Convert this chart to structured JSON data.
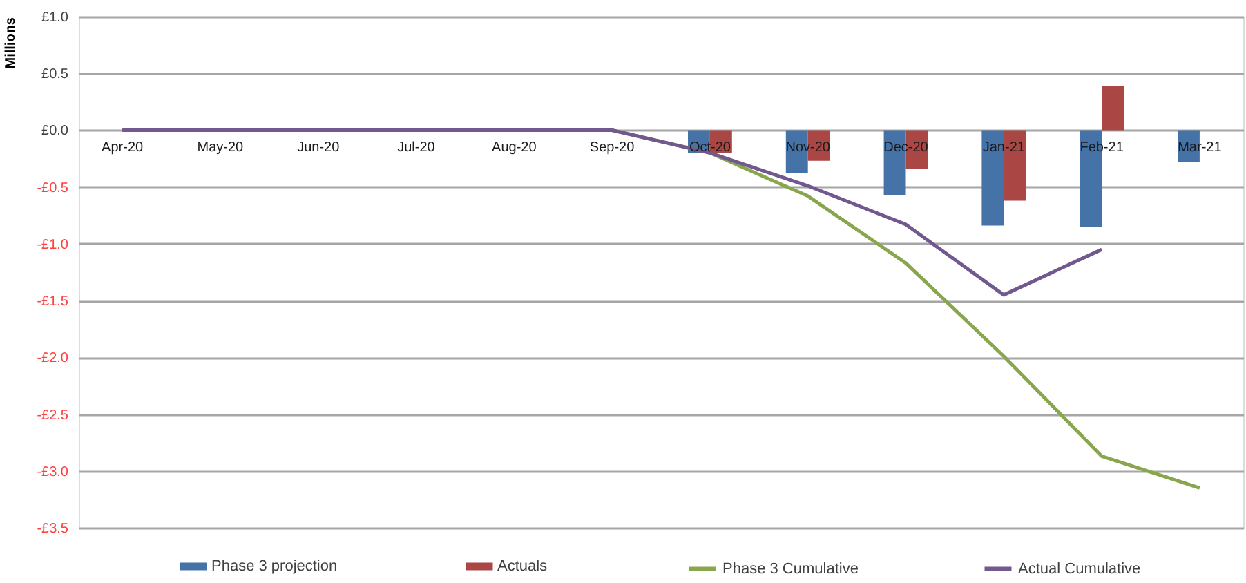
{
  "chart_data": {
    "type": "bar",
    "ylabel": "Millions",
    "categories": [
      "Apr-20",
      "May-20",
      "Jun-20",
      "Jul-20",
      "Aug-20",
      "Sep-20",
      "Oct-20",
      "Nov-20",
      "Dec-20",
      "Jan-21",
      "Feb-21",
      "Mar-21"
    ],
    "series": [
      {
        "name": "Phase 3 projection",
        "color": "#4572a7",
        "values": [
          null,
          null,
          null,
          null,
          null,
          null,
          -0.2,
          -0.38,
          -0.57,
          -0.84,
          -0.85,
          -0.28
        ]
      },
      {
        "name": "Actuals",
        "color": "#aa4643",
        "values": [
          null,
          null,
          null,
          null,
          null,
          null,
          -0.2,
          -0.27,
          -0.34,
          -0.62,
          0.39,
          null
        ]
      },
      {
        "name": "Phase 3 Cumulative",
        "type": "line",
        "color": "#89a54e",
        "values": [
          null,
          null,
          null,
          null,
          null,
          0,
          -0.2,
          -0.58,
          -1.17,
          -1.99,
          -2.87,
          -3.15
        ]
      },
      {
        "name": "Actual Cumulative",
        "type": "line",
        "color": "#71588f",
        "values": [
          0,
          0,
          0,
          0,
          0,
          0,
          -0.2,
          -0.49,
          -0.83,
          -1.45,
          -1.05,
          null
        ]
      }
    ],
    "ylim": [
      -3.5,
      1.0
    ],
    "yticks": [
      {
        "value": 1.0,
        "label": "£1.0"
      },
      {
        "value": 0.5,
        "label": "£0.5"
      },
      {
        "value": 0,
        "label": "£0.0"
      },
      {
        "value": -0.5,
        "label": "-£0.5"
      },
      {
        "value": -1.0,
        "label": "-£1.0"
      },
      {
        "value": -1.5,
        "label": "-£1.5"
      },
      {
        "value": -2.0,
        "label": "-£2.0"
      },
      {
        "value": -2.5,
        "label": "-£2.5"
      },
      {
        "value": -3.0,
        "label": "-£3.0"
      },
      {
        "value": -3.5,
        "label": "-£3.5"
      }
    ],
    "grid": "y",
    "legend": "bottom",
    "line_style": "solid"
  }
}
